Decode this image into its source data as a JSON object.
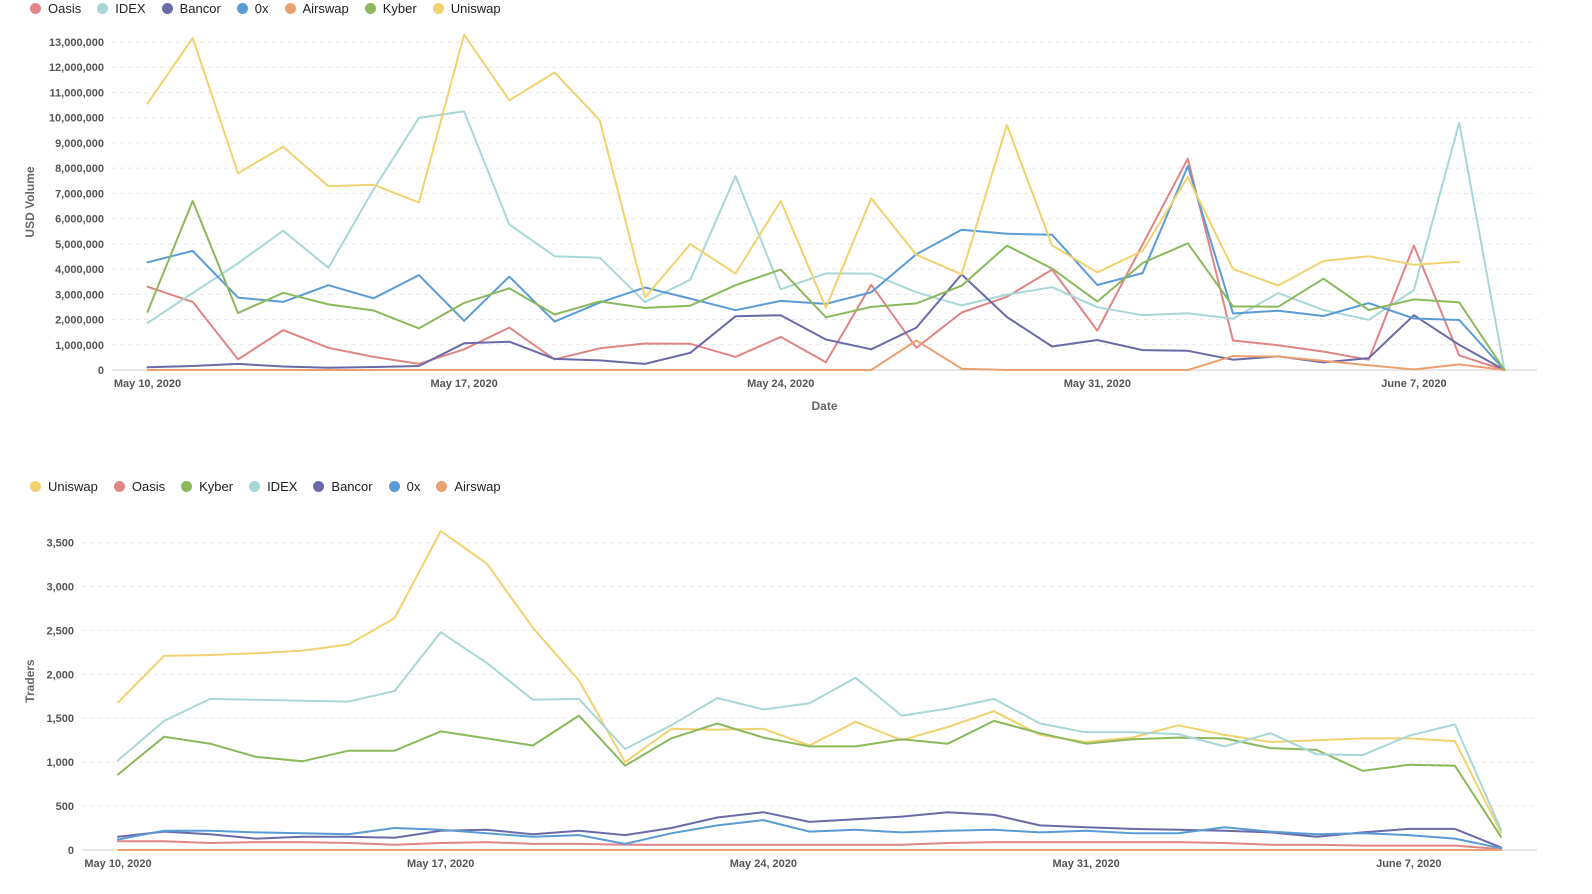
{
  "chart_data": [
    {
      "type": "line",
      "xlabel": "Date",
      "ylabel": "USD Volume",
      "ylim": [
        0,
        13000000
      ],
      "yticks": [
        0,
        1000000,
        2000000,
        3000000,
        4000000,
        5000000,
        6000000,
        7000000,
        8000000,
        9000000,
        10000000,
        11000000,
        12000000,
        13000000
      ],
      "ytick_labels": [
        "0",
        "1,000,000",
        "2,000,000",
        "3,000,000",
        "4,000,000",
        "5,000,000",
        "6,000,000",
        "7,000,000",
        "8,000,000",
        "9,000,000",
        "10,000,000",
        "11,000,000",
        "12,000,000",
        "13,000,000"
      ],
      "x_labels": [
        "May 10, 2020",
        "May 17, 2020",
        "May 24, 2020",
        "May 31, 2020",
        "June 7, 2020"
      ],
      "grid": true,
      "legend_position": "top-left",
      "series": [
        {
          "name": "Oasis",
          "color": "#e08585",
          "values": [
            3300000,
            2700000,
            420000,
            1580000,
            880000,
            520000,
            240000,
            820000,
            1680000,
            420000,
            860000,
            1050000,
            1040000,
            520000,
            1310000,
            310000,
            3380000,
            880000,
            2280000,
            2900000,
            3980000,
            1560000,
            4980000,
            8380000,
            1170000,
            980000,
            730000,
            410000,
            4930000,
            580000,
            0
          ]
        },
        {
          "name": "IDEX",
          "color": "#a8d7d7",
          "values": [
            1860000,
            3050000,
            4230000,
            5520000,
            4050000,
            7160000,
            9990000,
            10250000,
            5770000,
            4510000,
            4450000,
            2690000,
            3580000,
            7690000,
            3200000,
            3830000,
            3820000,
            3080000,
            2560000,
            2990000,
            3280000,
            2490000,
            2170000,
            2250000,
            2030000,
            3050000,
            2380000,
            1990000,
            3170000,
            9800000,
            0
          ]
        },
        {
          "name": "Bancor",
          "color": "#6b6aa8",
          "values": [
            110000,
            160000,
            240000,
            140000,
            90000,
            120000,
            160000,
            1060000,
            1120000,
            440000,
            380000,
            240000,
            680000,
            2130000,
            2170000,
            1210000,
            820000,
            1680000,
            3790000,
            2100000,
            930000,
            1190000,
            790000,
            760000,
            410000,
            540000,
            300000,
            470000,
            2170000,
            1000000,
            0
          ]
        },
        {
          "name": "0x",
          "color": "#5b9bd5",
          "values": [
            4270000,
            4720000,
            2870000,
            2700000,
            3360000,
            2840000,
            3760000,
            1950000,
            3700000,
            1920000,
            2670000,
            3270000,
            2830000,
            2370000,
            2740000,
            2620000,
            3080000,
            4590000,
            5560000,
            5400000,
            5360000,
            3370000,
            3840000,
            8080000,
            2240000,
            2350000,
            2140000,
            2650000,
            2040000,
            1980000,
            0
          ]
        },
        {
          "name": "Airswap",
          "color": "#eba06f",
          "values": [
            0,
            0,
            0,
            0,
            0,
            0,
            0,
            0,
            0,
            0,
            0,
            0,
            0,
            0,
            0,
            0,
            0,
            1170000,
            50000,
            0,
            0,
            0,
            0,
            0,
            550000,
            530000,
            360000,
            190000,
            20000,
            220000,
            0
          ]
        },
        {
          "name": "Kyber",
          "color": "#8cb85c",
          "values": [
            2300000,
            6700000,
            2260000,
            3060000,
            2600000,
            2360000,
            1650000,
            2660000,
            3240000,
            2200000,
            2720000,
            2460000,
            2550000,
            3360000,
            3980000,
            2090000,
            2500000,
            2640000,
            3340000,
            4930000,
            4020000,
            2710000,
            4240000,
            5020000,
            2520000,
            2510000,
            3620000,
            2380000,
            2800000,
            2680000,
            0
          ]
        },
        {
          "name": "Uniswap",
          "color": "#f0d36e",
          "values": [
            10560000,
            13160000,
            7800000,
            8850000,
            7280000,
            7340000,
            6640000,
            13290000,
            10690000,
            11790000,
            9900000,
            2880000,
            4990000,
            3820000,
            6700000,
            2470000,
            6800000,
            4570000,
            3790000,
            9710000,
            4940000,
            3870000,
            4720000,
            7650000,
            4000000,
            3350000,
            4320000,
            4510000,
            4170000,
            4290000,
            null
          ]
        }
      ]
    },
    {
      "type": "line",
      "xlabel": "",
      "ylabel": "Traders",
      "ylim": [
        0,
        3700
      ],
      "yticks": [
        0,
        500,
        1000,
        1500,
        2000,
        2500,
        3000,
        3500
      ],
      "ytick_labels": [
        "0",
        "500",
        "1,000",
        "1,500",
        "2,000",
        "2,500",
        "3,000",
        "3,500"
      ],
      "x_labels": [
        "May 10, 2020",
        "May 17, 2020",
        "May 24, 2020",
        "May 31, 2020",
        "June 7, 2020"
      ],
      "grid": true,
      "legend_position": "top-left",
      "series": [
        {
          "name": "Uniswap",
          "color": "#f0d36e",
          "values": [
            1680,
            2210,
            2220,
            2240,
            2270,
            2340,
            2640,
            3630,
            3260,
            2530,
            1930,
            1000,
            1380,
            1370,
            1380,
            1190,
            1460,
            1250,
            1400,
            1580,
            1310,
            1230,
            1280,
            1420,
            1310,
            1230,
            1250,
            1270,
            1270,
            1240,
            200
          ]
        },
        {
          "name": "Oasis",
          "color": "#e08585",
          "values": [
            100,
            100,
            80,
            90,
            90,
            80,
            60,
            80,
            90,
            70,
            70,
            60,
            60,
            60,
            60,
            60,
            60,
            60,
            80,
            90,
            90,
            90,
            90,
            90,
            80,
            60,
            60,
            50,
            50,
            50,
            10
          ]
        },
        {
          "name": "Kyber",
          "color": "#8cb85c",
          "values": [
            860,
            1290,
            1210,
            1060,
            1010,
            1130,
            1130,
            1350,
            1270,
            1190,
            1530,
            960,
            1270,
            1440,
            1280,
            1180,
            1180,
            1260,
            1210,
            1470,
            1330,
            1210,
            1260,
            1280,
            1270,
            1160,
            1140,
            900,
            970,
            960,
            150
          ]
        },
        {
          "name": "IDEX",
          "color": "#a8d7d7",
          "values": [
            1020,
            1470,
            1720,
            1710,
            1700,
            1690,
            1810,
            2480,
            2130,
            1710,
            1720,
            1150,
            1420,
            1730,
            1600,
            1670,
            1960,
            1530,
            1610,
            1720,
            1440,
            1340,
            1340,
            1320,
            1180,
            1330,
            1090,
            1080,
            1300,
            1430,
            230
          ]
        },
        {
          "name": "Bancor",
          "color": "#6b6aa8",
          "values": [
            150,
            210,
            180,
            130,
            150,
            150,
            140,
            220,
            230,
            180,
            220,
            170,
            250,
            370,
            430,
            320,
            350,
            380,
            430,
            400,
            280,
            260,
            240,
            230,
            220,
            200,
            150,
            200,
            240,
            240,
            30
          ]
        },
        {
          "name": "0x",
          "color": "#5b9bd5",
          "values": [
            120,
            220,
            220,
            200,
            190,
            180,
            250,
            230,
            190,
            150,
            170,
            70,
            190,
            280,
            340,
            210,
            230,
            200,
            220,
            230,
            200,
            220,
            190,
            190,
            260,
            210,
            180,
            190,
            170,
            130,
            20
          ]
        },
        {
          "name": "Airswap",
          "color": "#eba06f",
          "values": [
            0,
            0,
            0,
            0,
            0,
            0,
            0,
            0,
            0,
            0,
            0,
            0,
            0,
            0,
            0,
            0,
            0,
            0,
            0,
            0,
            0,
            0,
            0,
            0,
            0,
            0,
            0,
            0,
            0,
            0,
            0
          ]
        }
      ]
    }
  ]
}
